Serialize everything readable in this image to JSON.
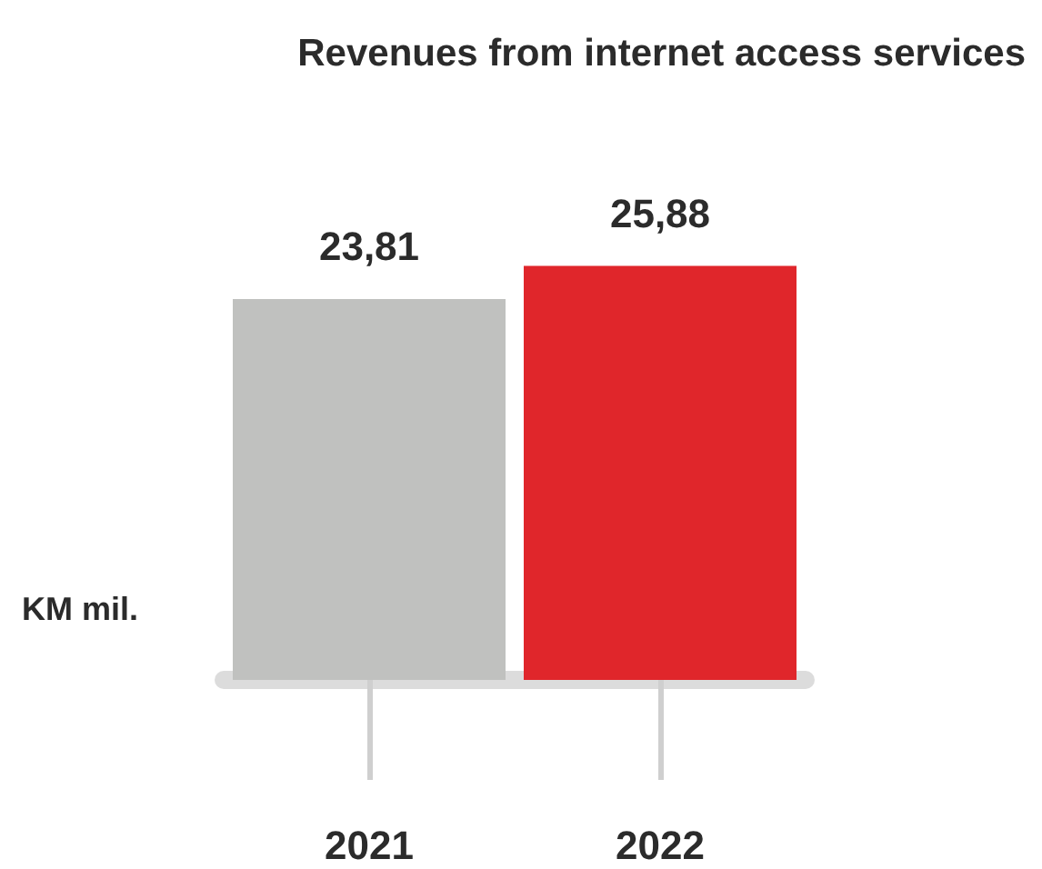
{
  "chart_data": {
    "type": "bar",
    "title": "Revenues from internet access services",
    "ylabel": "KM mil.",
    "categories": [
      "2021",
      "2022"
    ],
    "values": [
      23.81,
      25.88
    ],
    "colors": [
      "#c0c1bf",
      "#e0262b"
    ],
    "value_labels": [
      "23,81",
      "25,88"
    ]
  }
}
